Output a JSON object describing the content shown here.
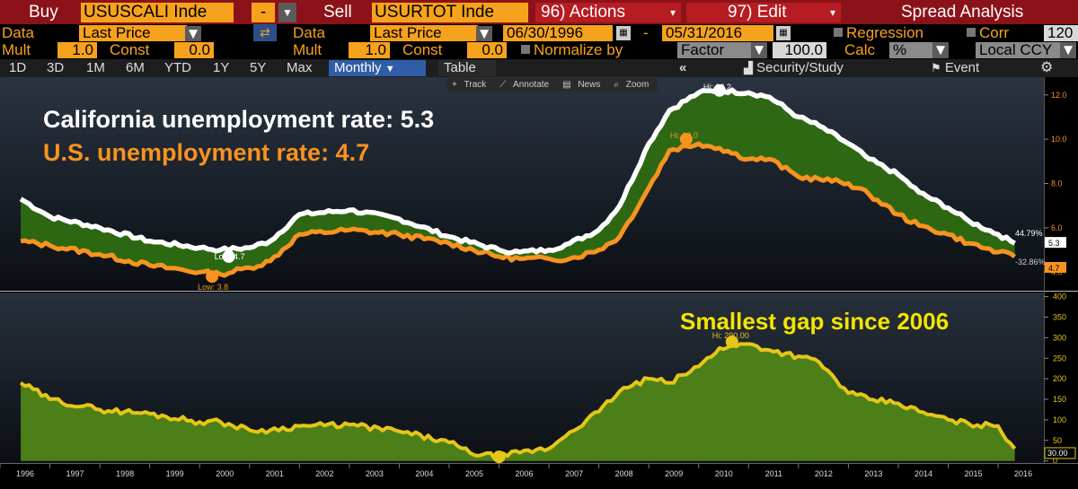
{
  "toolbar": {
    "buy_label": "Buy",
    "buy_ticker": "USUSCALI Inde",
    "minus": "-",
    "sell_label": "Sell",
    "sell_ticker": "USURTOT Inde",
    "actions": "96) Actions",
    "edit": "97) Edit",
    "spread": "Spread Analysis"
  },
  "row2": {
    "data_label": "Data",
    "data_value": "Last Price",
    "data2_label": "Data",
    "data2_value": "Last Price",
    "date_from": "06/30/1996",
    "date_sep": "-",
    "date_to": "05/31/2016",
    "regression": "Regression",
    "corr_label": "Corr",
    "corr_value": "120"
  },
  "row3": {
    "mult_label": "Mult",
    "mult_value": "1.0",
    "const_label": "Const",
    "const_value": "0.0",
    "mult2_label": "Mult",
    "mult2_value": "1.0",
    "const2_label": "Const",
    "const2_value": "0.0",
    "normalize": "Normalize by",
    "factor": "Factor",
    "factor_value": "100.0",
    "calc": "Calc",
    "calc_value": "%",
    "ccy": "Local CCY"
  },
  "tabs": {
    "items": [
      "1D",
      "3D",
      "1M",
      "6M",
      "YTD",
      "1Y",
      "5Y",
      "Max"
    ],
    "monthly": "Monthly",
    "table": "Table",
    "collapse": "«",
    "security": "Security/Study",
    "event": "Event"
  },
  "chart_tools": [
    "Track",
    "Annotate",
    "News",
    "Zoom"
  ],
  "annotations": {
    "california": "California unemployment rate: 5.3",
    "us": "U.S. unemployment rate: 4.7",
    "gap": "Smallest gap since 2006"
  },
  "colors": {
    "california": "#ffffff",
    "us": "#f7931e",
    "fill_top": "#2e6b12",
    "spread_line": "#e6c618",
    "spread_fill": "#4c7f17",
    "gap_text": "#f4e400"
  },
  "chart_data": [
    {
      "type": "line",
      "title": "",
      "series": [
        {
          "name": "",
          "x": [
            "1996-06",
            "1997-01",
            "1998-01",
            "1999-01",
            "2000-01",
            "2000-06",
            "2001-01",
            "2001-06",
            "2002-01",
            "2003-01",
            "2004-01",
            "2005-01",
            "2006-01",
            "2006-06",
            "2007-01",
            "2007-06",
            "2008-01",
            "2008-06",
            "2009-01",
            "2009-06",
            "2010-01",
            "2010-06",
            "2011-01",
            "2011-06",
            "2012-01",
            "2012-06",
            "2013-01",
            "2013-06",
            "2014-01",
            "2014-06",
            "2015-01",
            "2015-06",
            "2016-01",
            "2016-05"
          ],
          "values": [
            7.3,
            6.5,
            6.0,
            5.4,
            5.1,
            5.0,
            5.1,
            5.4,
            6.6,
            6.8,
            6.4,
            5.6,
            5.0,
            4.9,
            5.0,
            5.3,
            5.9,
            7.0,
            9.8,
            11.3,
            12.1,
            12.2,
            12.1,
            11.9,
            11.0,
            10.6,
            9.8,
            9.1,
            8.4,
            7.6,
            6.9,
            6.3,
            5.7,
            5.3
          ]
        },
        {
          "name": "",
          "x": [
            "1996-06",
            "1997-01",
            "1998-01",
            "1999-01",
            "2000-01",
            "2000-06",
            "2001-01",
            "2001-06",
            "2002-01",
            "2003-01",
            "2004-01",
            "2005-01",
            "2006-01",
            "2006-06",
            "2007-01",
            "2007-06",
            "2008-01",
            "2008-06",
            "2009-01",
            "2009-06",
            "2010-01",
            "2010-06",
            "2011-01",
            "2011-06",
            "2012-01",
            "2012-06",
            "2013-01",
            "2013-06",
            "2014-01",
            "2014-06",
            "2015-01",
            "2015-06",
            "2016-01",
            "2016-05"
          ],
          "values": [
            5.4,
            5.2,
            4.8,
            4.3,
            4.0,
            3.9,
            4.2,
            4.5,
            5.7,
            5.9,
            5.7,
            5.3,
            4.7,
            4.6,
            4.6,
            4.6,
            5.0,
            5.6,
            7.8,
            9.5,
            9.8,
            9.6,
            9.1,
            9.1,
            8.3,
            8.2,
            8.0,
            7.5,
            6.6,
            6.1,
            5.7,
            5.3,
            4.9,
            4.7
          ]
        }
      ],
      "point_labels": [
        {
          "text": "Hi: 12.2",
          "x": "2010-06",
          "y": 12.2
        },
        {
          "text": "Hi: 10.0",
          "x": "2009-10",
          "y": 10.0
        },
        {
          "text": "Low: 4.7",
          "x": "2000-08",
          "y": 4.7
        },
        {
          "text": "Low: 3.8",
          "x": "2000-04",
          "y": 3.8
        }
      ],
      "end_labels": {
        "california": "5.3",
        "us": "4.7",
        "california_pct": "44.79%",
        "us_pct": "-32.86%"
      },
      "y_ticks": [
        "4.0",
        "6.0",
        "8.0",
        "10.0",
        "12.0"
      ],
      "ylim": [
        3.2,
        12.8
      ],
      "xlim": [
        "1996-01",
        "2016-12"
      ]
    },
    {
      "type": "area",
      "title": "",
      "series": [
        {
          "name": "",
          "x": [
            "1996-06",
            "1997-01",
            "1998-01",
            "1999-01",
            "2000-01",
            "2000-06",
            "2001-01",
            "2001-06",
            "2002-01",
            "2003-01",
            "2004-01",
            "2005-01",
            "2005-06",
            "2006-01",
            "2006-06",
            "2007-01",
            "2007-06",
            "2008-01",
            "2008-06",
            "2009-01",
            "2009-06",
            "2010-01",
            "2010-06",
            "2011-01",
            "2011-06",
            "2012-01",
            "2012-06",
            "2013-01",
            "2013-06",
            "2014-01",
            "2014-06",
            "2015-01",
            "2015-06",
            "2016-01",
            "2016-05"
          ],
          "values": [
            190,
            150,
            125,
            115,
            95,
            95,
            75,
            75,
            85,
            88,
            72,
            45,
            20,
            10,
            20,
            30,
            70,
            120,
            170,
            200,
            190,
            230,
            275,
            285,
            270,
            255,
            240,
            165,
            150,
            140,
            120,
            100,
            90,
            85,
            30
          ]
        }
      ],
      "point_labels": [
        {
          "text": "Hi: 290.00",
          "x": "2010-09",
          "y": 290
        },
        {
          "text": "Low: 10.00",
          "x": "2006-01",
          "y": 10
        }
      ],
      "end_label": "30.00",
      "y_ticks": [
        "0",
        "50",
        "100",
        "150",
        "200",
        "250",
        "300",
        "350",
        "400"
      ],
      "ylim": [
        -5,
        410
      ],
      "x_ticks": [
        "1996",
        "1997",
        "1998",
        "1999",
        "2000",
        "2001",
        "2002",
        "2003",
        "2004",
        "2005",
        "2006",
        "2007",
        "2008",
        "2009",
        "2010",
        "2011",
        "2012",
        "2013",
        "2014",
        "2015",
        "2016"
      ]
    }
  ]
}
